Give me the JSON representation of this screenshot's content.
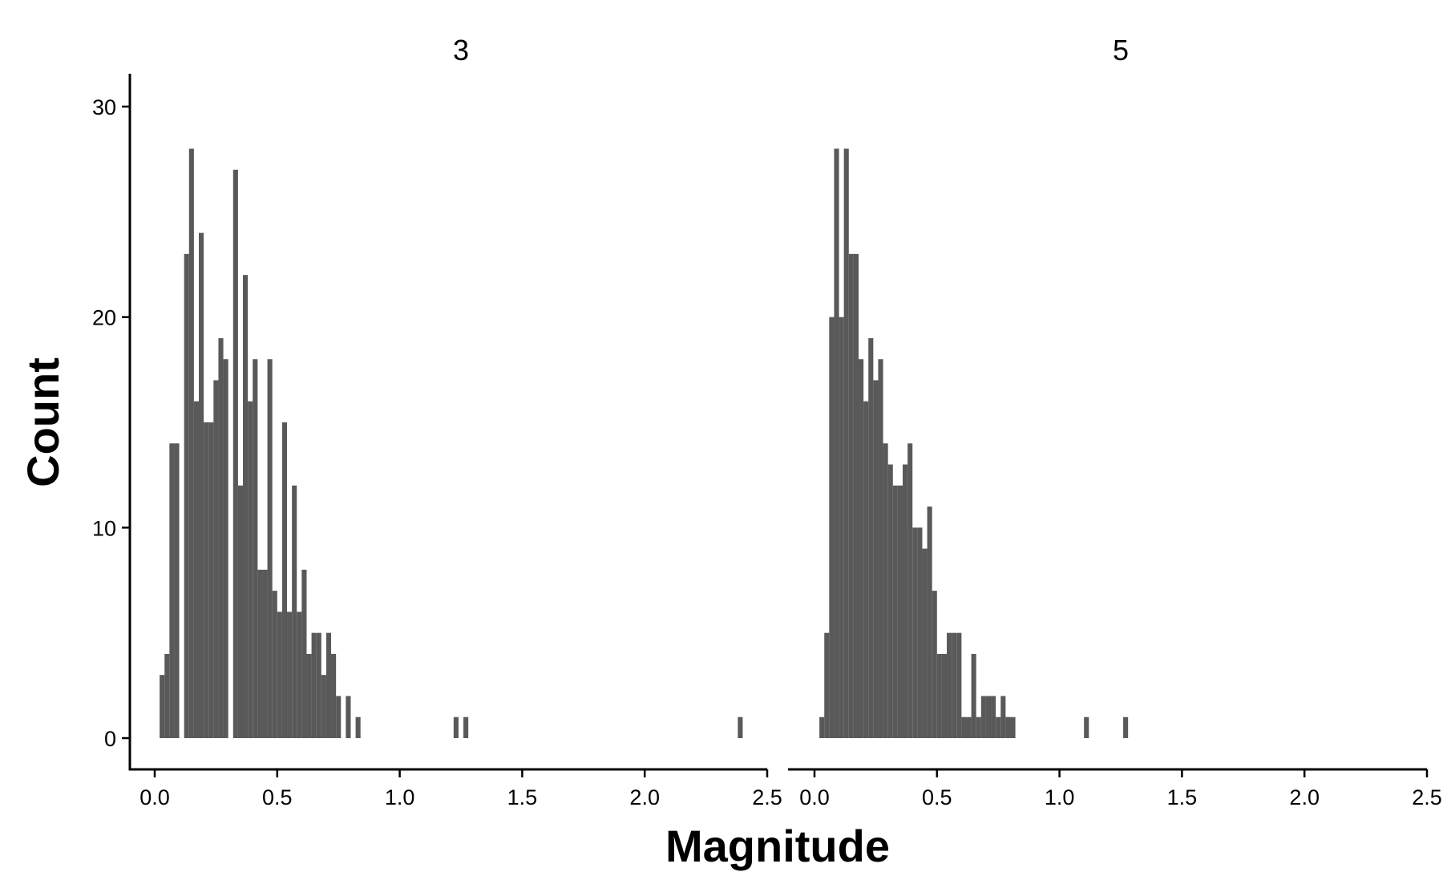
{
  "chart_data": {
    "type": "bar",
    "xlabel": "Magnitude",
    "ylabel": "Count",
    "xlim": [
      0.0,
      2.5
    ],
    "ylim": [
      0,
      30
    ],
    "x_ticks": [
      "0.0",
      "0.5",
      "1.0",
      "1.5",
      "2.0",
      "2.5"
    ],
    "y_ticks": [
      "0",
      "10",
      "20",
      "30"
    ],
    "grid": false,
    "bin_width": 0.02,
    "panels": [
      {
        "label": "3",
        "bins": [
          {
            "x": 0.03,
            "count": 3
          },
          {
            "x": 0.05,
            "count": 4
          },
          {
            "x": 0.07,
            "count": 14
          },
          {
            "x": 0.09,
            "count": 14
          },
          {
            "x": 0.13,
            "count": 23
          },
          {
            "x": 0.15,
            "count": 28
          },
          {
            "x": 0.17,
            "count": 16
          },
          {
            "x": 0.19,
            "count": 24
          },
          {
            "x": 0.21,
            "count": 15
          },
          {
            "x": 0.23,
            "count": 15
          },
          {
            "x": 0.25,
            "count": 17
          },
          {
            "x": 0.27,
            "count": 19
          },
          {
            "x": 0.29,
            "count": 18
          },
          {
            "x": 0.33,
            "count": 27
          },
          {
            "x": 0.35,
            "count": 12
          },
          {
            "x": 0.37,
            "count": 22
          },
          {
            "x": 0.39,
            "count": 16
          },
          {
            "x": 0.41,
            "count": 18
          },
          {
            "x": 0.43,
            "count": 8
          },
          {
            "x": 0.45,
            "count": 8
          },
          {
            "x": 0.47,
            "count": 18
          },
          {
            "x": 0.49,
            "count": 7
          },
          {
            "x": 0.51,
            "count": 6
          },
          {
            "x": 0.53,
            "count": 15
          },
          {
            "x": 0.55,
            "count": 6
          },
          {
            "x": 0.57,
            "count": 12
          },
          {
            "x": 0.59,
            "count": 6
          },
          {
            "x": 0.61,
            "count": 8
          },
          {
            "x": 0.63,
            "count": 4
          },
          {
            "x": 0.65,
            "count": 5
          },
          {
            "x": 0.67,
            "count": 5
          },
          {
            "x": 0.69,
            "count": 3
          },
          {
            "x": 0.71,
            "count": 5
          },
          {
            "x": 0.73,
            "count": 4
          },
          {
            "x": 0.75,
            "count": 2
          },
          {
            "x": 0.79,
            "count": 2
          },
          {
            "x": 0.83,
            "count": 1
          },
          {
            "x": 1.23,
            "count": 1
          },
          {
            "x": 1.27,
            "count": 1
          },
          {
            "x": 2.39,
            "count": 1
          }
        ]
      },
      {
        "label": "5",
        "bins": [
          {
            "x": 0.03,
            "count": 1
          },
          {
            "x": 0.05,
            "count": 5
          },
          {
            "x": 0.07,
            "count": 20
          },
          {
            "x": 0.09,
            "count": 28
          },
          {
            "x": 0.11,
            "count": 20
          },
          {
            "x": 0.13,
            "count": 28
          },
          {
            "x": 0.15,
            "count": 23
          },
          {
            "x": 0.17,
            "count": 23
          },
          {
            "x": 0.19,
            "count": 18
          },
          {
            "x": 0.21,
            "count": 16
          },
          {
            "x": 0.23,
            "count": 19
          },
          {
            "x": 0.25,
            "count": 17
          },
          {
            "x": 0.27,
            "count": 18
          },
          {
            "x": 0.29,
            "count": 14
          },
          {
            "x": 0.31,
            "count": 13
          },
          {
            "x": 0.33,
            "count": 12
          },
          {
            "x": 0.35,
            "count": 12
          },
          {
            "x": 0.37,
            "count": 13
          },
          {
            "x": 0.39,
            "count": 14
          },
          {
            "x": 0.41,
            "count": 10
          },
          {
            "x": 0.43,
            "count": 10
          },
          {
            "x": 0.45,
            "count": 9
          },
          {
            "x": 0.47,
            "count": 11
          },
          {
            "x": 0.49,
            "count": 7
          },
          {
            "x": 0.51,
            "count": 4
          },
          {
            "x": 0.53,
            "count": 4
          },
          {
            "x": 0.55,
            "count": 5
          },
          {
            "x": 0.57,
            "count": 5
          },
          {
            "x": 0.59,
            "count": 5
          },
          {
            "x": 0.61,
            "count": 1
          },
          {
            "x": 0.63,
            "count": 1
          },
          {
            "x": 0.65,
            "count": 4
          },
          {
            "x": 0.67,
            "count": 1
          },
          {
            "x": 0.69,
            "count": 2
          },
          {
            "x": 0.71,
            "count": 2
          },
          {
            "x": 0.73,
            "count": 2
          },
          {
            "x": 0.75,
            "count": 1
          },
          {
            "x": 0.77,
            "count": 2
          },
          {
            "x": 0.79,
            "count": 1
          },
          {
            "x": 0.81,
            "count": 1
          },
          {
            "x": 1.11,
            "count": 1
          },
          {
            "x": 1.27,
            "count": 1
          }
        ]
      }
    ],
    "colors": {
      "bar": "#595959",
      "axis": "#000000",
      "background": "#ffffff"
    }
  }
}
